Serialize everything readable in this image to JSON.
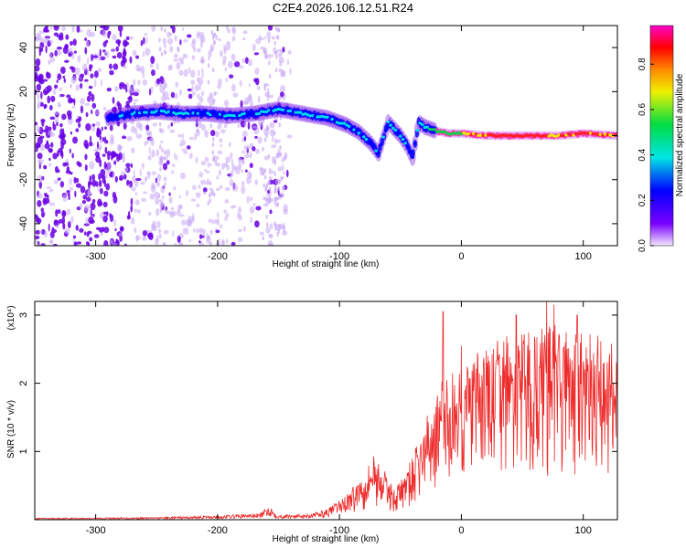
{
  "title": "C2E4.2026.106.12.51.R24",
  "colors": {
    "background": "#ffffff",
    "axis": "#000000",
    "snr_line": "#ee2a2a",
    "noise_purple": "#6a00e6",
    "noise_light": "#c9a8f5",
    "track_blue": "#0000ff",
    "track_cyan": "#00e5e5",
    "track_green": "#00dd44",
    "track_yellow": "#f0f000",
    "track_red": "#ff2020"
  },
  "chart_data": [
    {
      "type": "heatmap",
      "name": "spectrogram",
      "xlabel": "Height of straight line (km)",
      "ylabel": "Frequency (Hz)",
      "xlim": [
        -350,
        128
      ],
      "ylim": [
        -50,
        50
      ],
      "xticks": [
        -300,
        -200,
        -100,
        0,
        100
      ],
      "xtick_labels": [
        "-300",
        "-200",
        "-100",
        "0",
        "100"
      ],
      "yticks": [
        -40,
        -20,
        0,
        20,
        40
      ],
      "ytick_labels": [
        "-40",
        "-20",
        "0",
        "20",
        "40"
      ],
      "colorbar": {
        "label": "Normalized spectral amplitude",
        "range": [
          0,
          0.97
        ],
        "ticks": [
          0.0,
          0.2,
          0.4,
          0.6,
          0.8
        ],
        "tick_labels": [
          "0.0",
          "0.2",
          "0.4",
          "0.6",
          "0.8"
        ],
        "colormap": [
          "#e8d8ff",
          "#7a00ff",
          "#0000ff",
          "#00e5e5",
          "#00dd44",
          "#f0f000",
          "#ff8800",
          "#ff0000",
          "#ff00cc"
        ]
      },
      "ridge": {
        "x": [
          -290,
          -270,
          -250,
          -230,
          -210,
          -190,
          -170,
          -150,
          -130,
          -110,
          -95,
          -85,
          -75,
          -68,
          -60,
          -55,
          -50,
          -45,
          -40,
          -35,
          -30,
          -20,
          -10,
          0,
          20,
          40,
          60,
          80,
          100,
          128
        ],
        "y": [
          8,
          10,
          11,
          10,
          10,
          9,
          10,
          12,
          10,
          8,
          5,
          2,
          -3,
          -8,
          6,
          3,
          0,
          -4,
          -10,
          6,
          4,
          2,
          1,
          1,
          0,
          0,
          0,
          0,
          1,
          0
        ],
        "amplitude": [
          0.4,
          0.45,
          0.5,
          0.5,
          0.45,
          0.45,
          0.5,
          0.5,
          0.5,
          0.5,
          0.45,
          0.45,
          0.45,
          0.4,
          0.5,
          0.45,
          0.45,
          0.4,
          0.35,
          0.55,
          0.6,
          0.65,
          0.7,
          0.75,
          0.9,
          0.95,
          0.9,
          0.85,
          0.9,
          0.85
        ]
      },
      "noise_region": [
        -350,
        -140
      ]
    },
    {
      "type": "line",
      "name": "snr",
      "xlabel": "Height of straight line (km)",
      "ylabel": "SNR (10 * v/v)",
      "multiplier": "(x10⁴)",
      "xlim": [
        -350,
        128
      ],
      "ylim": [
        0,
        3.2
      ],
      "xticks": [
        -300,
        -200,
        -100,
        0,
        100
      ],
      "xtick_labels": [
        "-300",
        "-200",
        "-100",
        "0",
        "100"
      ],
      "yticks": [
        1,
        2,
        3
      ],
      "ytick_labels": [
        "1",
        "2",
        "3"
      ],
      "envelope": {
        "x": [
          -350,
          -250,
          -200,
          -165,
          -158,
          -150,
          -120,
          -110,
          -100,
          -90,
          -80,
          -72,
          -65,
          -55,
          -45,
          -35,
          -25,
          -15,
          -5,
          0,
          10,
          20,
          30,
          40,
          50,
          60,
          70,
          80,
          90,
          100,
          110,
          120,
          128
        ],
        "y": [
          0.02,
          0.03,
          0.05,
          0.08,
          0.18,
          0.06,
          0.08,
          0.12,
          0.22,
          0.35,
          0.55,
          0.75,
          0.6,
          0.35,
          0.55,
          0.9,
          1.3,
          1.6,
          1.7,
          1.75,
          1.85,
          1.95,
          2.05,
          2.1,
          2.1,
          2.15,
          2.2,
          2.2,
          2.15,
          2.1,
          2.1,
          2.05,
          2.1
        ]
      },
      "spikes": {
        "x": [
          -15,
          0,
          45,
          70,
          76,
          95
        ],
        "y": [
          3.05,
          2.55,
          3.0,
          3.2,
          3.15,
          3.0
        ]
      }
    }
  ]
}
